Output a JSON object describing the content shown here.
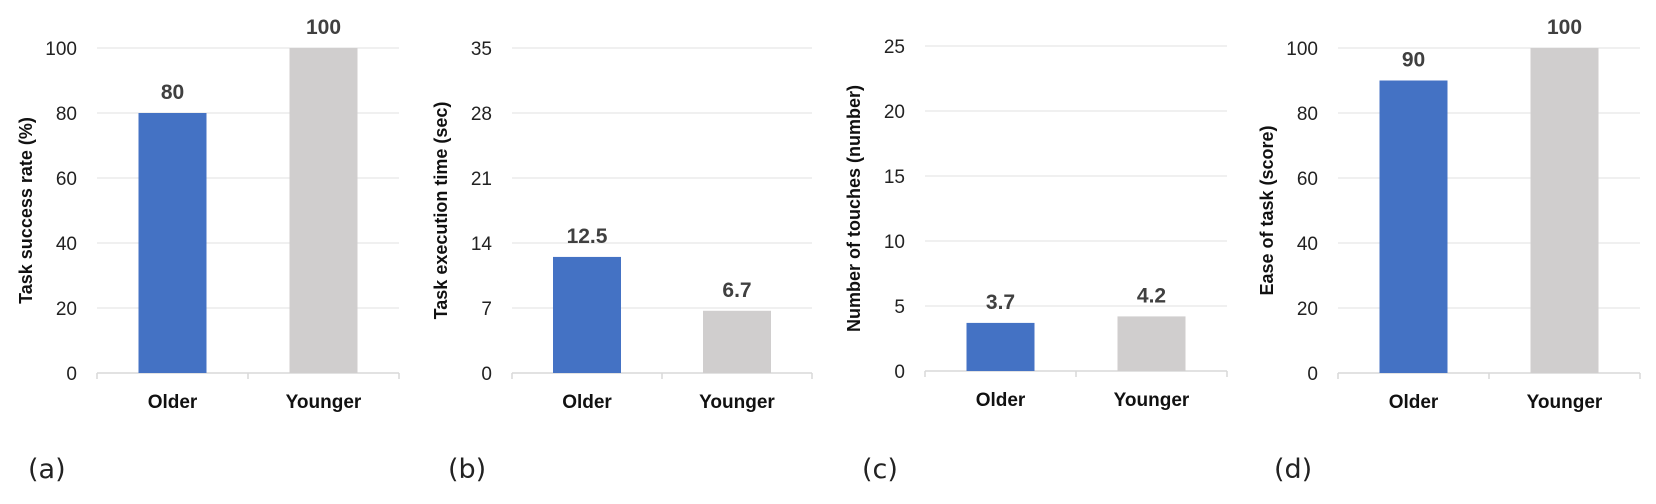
{
  "chart_data": [
    {
      "type": "bar",
      "panel_label": "(a)",
      "categories": [
        "Older",
        "Younger"
      ],
      "values": [
        80,
        100
      ],
      "value_labels": [
        "80",
        "100"
      ],
      "ylabel": "Task success rate (%)",
      "ylim": [
        0,
        100
      ],
      "yticks": [
        "0",
        "20",
        "40",
        "60",
        "80",
        "100"
      ],
      "grid": true,
      "colors": [
        "#4472c4",
        "#d0cece"
      ]
    },
    {
      "type": "bar",
      "panel_label": "(b)",
      "categories": [
        "Older",
        "Younger"
      ],
      "values": [
        12.5,
        6.7
      ],
      "value_labels": [
        "12.5",
        "6.7"
      ],
      "ylabel": "Task execution time (sec)",
      "ylim": [
        0,
        35
      ],
      "yticks": [
        "0",
        "7",
        "14",
        "21",
        "28",
        "35"
      ],
      "grid": true,
      "colors": [
        "#4472c4",
        "#d0cece"
      ]
    },
    {
      "type": "bar",
      "panel_label": "(c)",
      "categories": [
        "Older",
        "Younger"
      ],
      "values": [
        3.7,
        4.2
      ],
      "value_labels": [
        "3.7",
        "4.2"
      ],
      "ylabel": "Number of touches (number)",
      "ylim": [
        0,
        25
      ],
      "yticks": [
        "0",
        "5",
        "10",
        "15",
        "20",
        "25"
      ],
      "grid": true,
      "colors": [
        "#4472c4",
        "#d0cece"
      ]
    },
    {
      "type": "bar",
      "panel_label": "(d)",
      "categories": [
        "Older",
        "Younger"
      ],
      "values": [
        90,
        100
      ],
      "value_labels": [
        "90",
        "100"
      ],
      "ylabel": "Ease of task (score)",
      "ylim": [
        0,
        100
      ],
      "yticks": [
        "0",
        "20",
        "40",
        "60",
        "80",
        "100"
      ],
      "grid": true,
      "colors": [
        "#4472c4",
        "#d0cece"
      ]
    }
  ]
}
